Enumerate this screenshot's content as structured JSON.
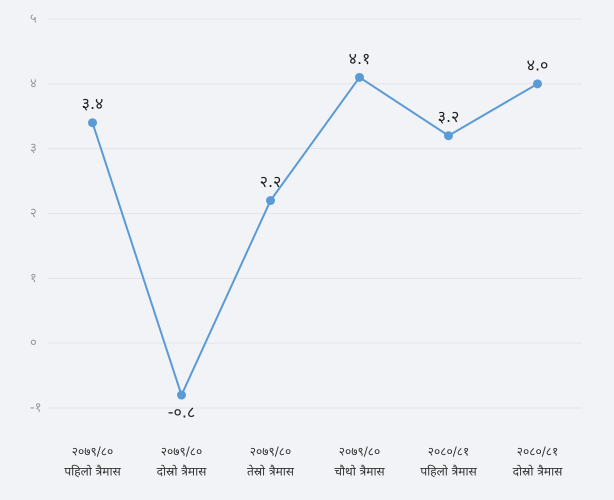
{
  "chart_data": {
    "type": "line",
    "categories": [
      [
        "२०७९/८०",
        "पहिलो त्रैमास"
      ],
      [
        "२०७९/८०",
        "दोस्रो त्रैमास"
      ],
      [
        "२०७९/८०",
        "तेस्रो त्रैमास"
      ],
      [
        "२०७९/८०",
        "चौथो त्रैमास"
      ],
      [
        "२०८०/८१",
        "पहिलो त्रैमास"
      ],
      [
        "२०८०/८१",
        "दोस्रो त्रैमास"
      ]
    ],
    "values": [
      3.4,
      -0.8,
      2.2,
      4.1,
      3.2,
      4.0
    ],
    "value_labels": [
      "३.४",
      "-०.८",
      "२.२",
      "४.१",
      "३.२",
      "४.०"
    ],
    "color": "#5b9bd5",
    "ylim": [
      -1,
      5
    ],
    "yticks": [
      {
        "value": -1,
        "label": "-१"
      },
      {
        "value": 0,
        "label": "०"
      },
      {
        "value": 1,
        "label": "१"
      },
      {
        "value": 2,
        "label": "२"
      },
      {
        "value": 3,
        "label": "३"
      },
      {
        "value": 4,
        "label": "४"
      },
      {
        "value": 5,
        "label": "५"
      }
    ],
    "grid": true
  }
}
